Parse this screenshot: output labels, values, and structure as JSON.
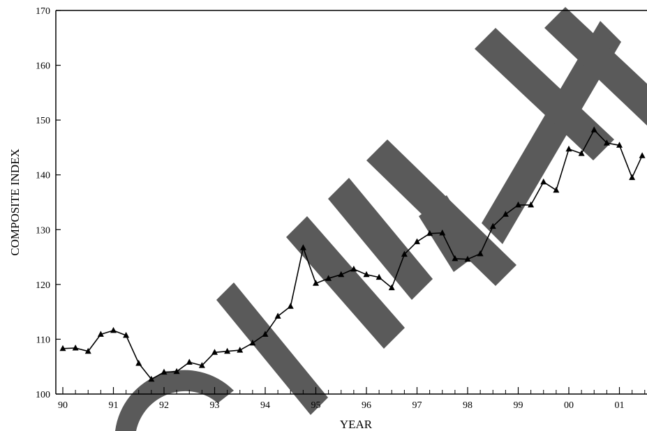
{
  "chart_data": {
    "type": "line",
    "title": "",
    "xlabel": "YEAR",
    "ylabel": "COMPOSITE INDEX",
    "xlim": [
      1990,
      2001.45
    ],
    "ylim": [
      100,
      170
    ],
    "x_ticks": [
      "90",
      "91",
      "92",
      "93",
      "94",
      "95",
      "96",
      "97",
      "98",
      "99",
      "00",
      "01"
    ],
    "y_ticks": [
      "100",
      "110",
      "120",
      "130",
      "140",
      "150",
      "160",
      "170"
    ],
    "grid": false,
    "legend": "none",
    "marker": "triangle",
    "series": [
      {
        "x": [
          1990.0,
          1990.25,
          1990.5,
          1990.75,
          1991.0,
          1991.25,
          1991.5,
          1991.75,
          1992.0,
          1992.25,
          1992.5,
          1992.75,
          1993.0,
          1993.25,
          1993.5,
          1993.75,
          1994.0,
          1994.25,
          1994.5,
          1994.75,
          1995.0,
          1995.25,
          1995.5,
          1995.75,
          1996.0,
          1996.25,
          1996.5,
          1996.75,
          1997.0,
          1997.25,
          1997.5,
          1997.75,
          1998.0,
          1998.25,
          1998.5,
          1998.75,
          1999.0,
          1999.25,
          1999.5,
          1999.75,
          2000.0,
          2000.25,
          2000.5,
          2000.75,
          2001.0,
          2001.25,
          2001.45
        ],
        "y": [
          108.3,
          108.4,
          107.8,
          110.9,
          111.6,
          110.7,
          105.6,
          102.7,
          104.0,
          104.1,
          105.8,
          105.2,
          107.6,
          107.8,
          108.0,
          109.3,
          110.9,
          114.2,
          116.0,
          126.7,
          120.2,
          121.1,
          121.8,
          122.8,
          121.8,
          121.3,
          119.4,
          125.5,
          127.8,
          129.3,
          129.4,
          124.7,
          124.6,
          125.6,
          130.6,
          132.8,
          134.5,
          134.5,
          138.7,
          137.2,
          144.7,
          143.9,
          148.2,
          145.8,
          145.4,
          139.5,
          143.5
        ]
      }
    ]
  },
  "colors": {
    "line": "#000000",
    "axis": "#000000",
    "watermark": "#5a5a5a"
  }
}
